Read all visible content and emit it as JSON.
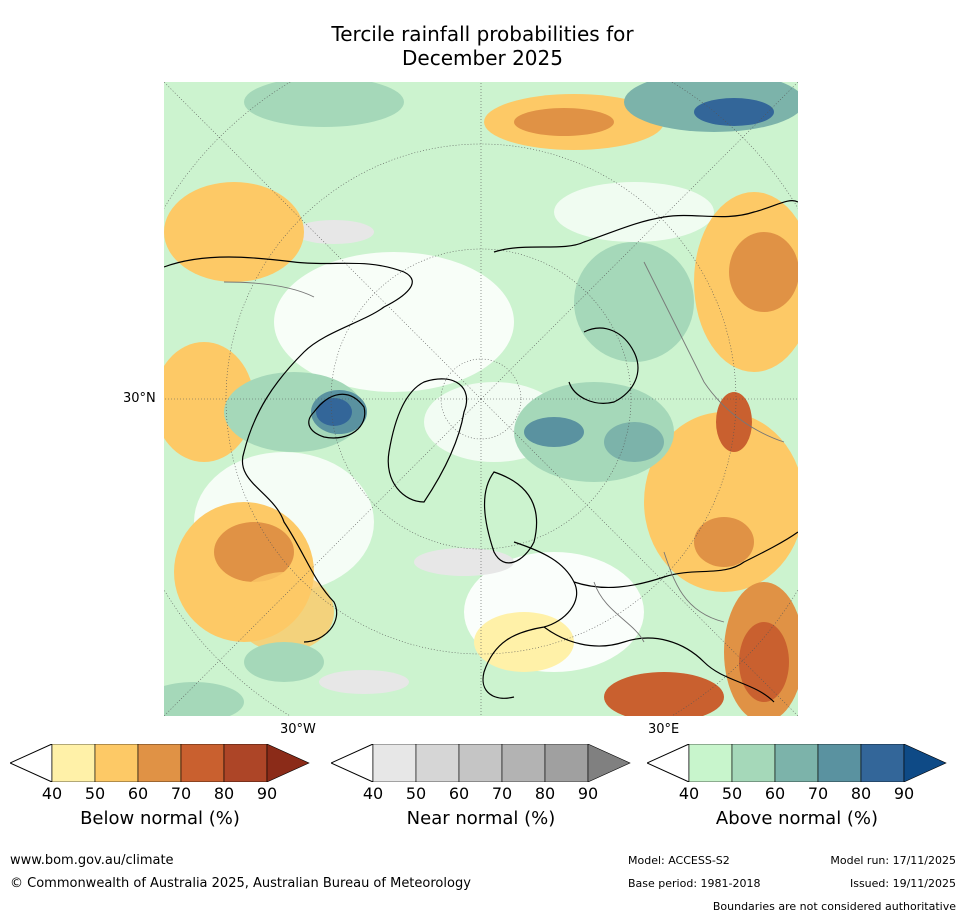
{
  "title": {
    "line1": "Tercile rainfall probabilities for",
    "line2": "December 2025"
  },
  "map": {
    "lat_label": "30°N",
    "lon_label_west": "30°W",
    "lon_label_east": "30°E"
  },
  "colorbars": [
    {
      "label": "Below normal (%)",
      "ticks": [
        "40",
        "50",
        "60",
        "70",
        "80",
        "90"
      ],
      "colors": [
        "#fff1a8",
        "#fdc966",
        "#e09245",
        "#c9602f",
        "#ad4527",
        "#8b2b18"
      ]
    },
    {
      "label": "Near normal (%)",
      "ticks": [
        "40",
        "50",
        "60",
        "70",
        "80",
        "90"
      ],
      "colors": [
        "#e7e7e7",
        "#d6d6d6",
        "#c5c5c5",
        "#b3b3b3",
        "#a0a0a0",
        "#808080"
      ]
    },
    {
      "label": "Above normal (%)",
      "ticks": [
        "40",
        "50",
        "60",
        "70",
        "80",
        "90"
      ],
      "colors": [
        "#c8f5cc",
        "#a5d8b9",
        "#7cb3aa",
        "#5a92a0",
        "#336699",
        "#0e4a86"
      ]
    }
  ],
  "footer": {
    "website": "www.bom.gov.au/climate",
    "copyright": "© Commonwealth of Australia 2025, Australian Bureau of Meteorology",
    "model": "Model: ACCESS-S2",
    "model_run": "Model run: 17/11/2025",
    "base_period": "Base period: 1981-2018",
    "issued": "Issued: 19/11/2025",
    "disclaimer": "Boundaries are not considered authoritative"
  }
}
